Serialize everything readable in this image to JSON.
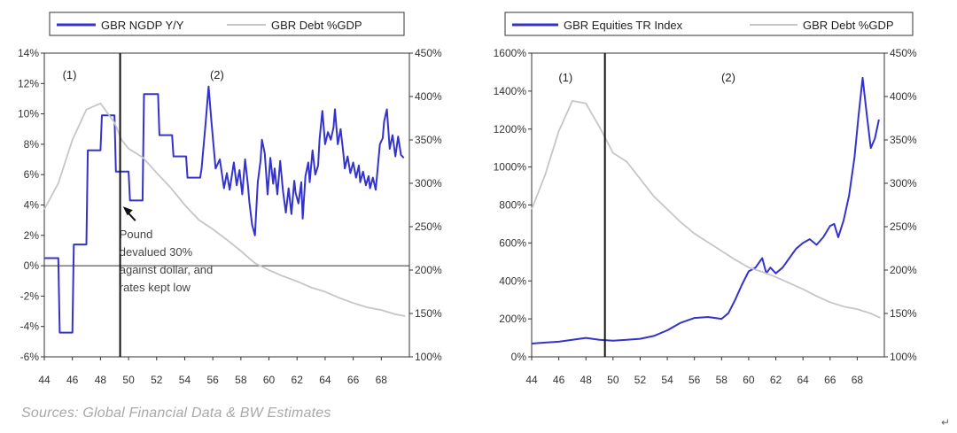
{
  "source": "Sources: Global Financial Data & BW Estimates",
  "return_mark": "↵",
  "chart_data": [
    {
      "type": "line",
      "legend": [
        "GBR NGDP Y/Y",
        "GBR Debt %GDP"
      ],
      "legend_placement": "top",
      "xticks": [
        "44",
        "46",
        "48",
        "50",
        "52",
        "54",
        "56",
        "58",
        "60",
        "62",
        "64",
        "66",
        "68"
      ],
      "xlim": [
        1944,
        1970
      ],
      "ylim_left": [
        -6,
        14
      ],
      "yticks_left": [
        "14%",
        "12%",
        "10%",
        "8%",
        "6%",
        "4%",
        "2%",
        "0%",
        "-2%",
        "-4%",
        "-6%"
      ],
      "ylim_right": [
        100,
        450
      ],
      "yticks_right": [
        "450%",
        "400%",
        "350%",
        "300%",
        "250%",
        "200%",
        "150%",
        "100%"
      ],
      "grid": false,
      "vline_x": 1949.4,
      "period_labels": [
        {
          "text": "(1)",
          "x": 1945.8,
          "y": 12.3
        },
        {
          "text": "(2)",
          "x": 1956.3,
          "y": 12.3
        }
      ],
      "annotation_lines": [
        "Pound",
        "devalued 30%",
        "against dollar, and",
        "rates kept low"
      ],
      "annotation_point": {
        "x": 1949.6,
        "y": 3.9
      },
      "series": [
        {
          "name": "GBR NGDP Y/Y",
          "color": "#3333cc",
          "axis": "left",
          "points": [
            [
              1944,
              0.5
            ],
            [
              1945,
              0.5
            ],
            [
              1945.1,
              -4.4
            ],
            [
              1946,
              -4.4
            ],
            [
              1946.1,
              1.4
            ],
            [
              1947,
              1.4
            ],
            [
              1947.1,
              7.6
            ],
            [
              1948,
              7.6
            ],
            [
              1948.1,
              9.9
            ],
            [
              1949,
              9.9
            ],
            [
              1949.1,
              6.2
            ],
            [
              1950,
              6.2
            ],
            [
              1950.1,
              4.3
            ],
            [
              1951,
              4.3
            ],
            [
              1951.1,
              11.3
            ],
            [
              1952.1,
              11.3
            ],
            [
              1952.2,
              8.6
            ],
            [
              1953.1,
              8.6
            ],
            [
              1953.2,
              7.2
            ],
            [
              1954.1,
              7.2
            ],
            [
              1954.2,
              5.8
            ],
            [
              1955.1,
              5.8
            ],
            [
              1955.2,
              6.4
            ],
            [
              1955.5,
              9.5
            ],
            [
              1955.7,
              11.8
            ],
            [
              1955.9,
              9.5
            ],
            [
              1956.2,
              6.4
            ],
            [
              1956.5,
              7.0
            ],
            [
              1956.8,
              5.1
            ],
            [
              1957.0,
              6.1
            ],
            [
              1957.2,
              5.0
            ],
            [
              1957.5,
              6.8
            ],
            [
              1957.7,
              5.3
            ],
            [
              1957.9,
              6.3
            ],
            [
              1958.1,
              4.7
            ],
            [
              1958.3,
              7.0
            ],
            [
              1958.5,
              5.3
            ],
            [
              1958.6,
              4.2
            ],
            [
              1958.8,
              2.7
            ],
            [
              1959.0,
              2.0
            ],
            [
              1959.2,
              5.5
            ],
            [
              1959.4,
              6.9
            ],
            [
              1959.5,
              8.3
            ],
            [
              1959.7,
              7.4
            ],
            [
              1959.9,
              4.7
            ],
            [
              1960.1,
              7.1
            ],
            [
              1960.3,
              5.4
            ],
            [
              1960.4,
              6.4
            ],
            [
              1960.6,
              4.7
            ],
            [
              1960.8,
              6.9
            ],
            [
              1961.0,
              4.9
            ],
            [
              1961.2,
              3.5
            ],
            [
              1961.4,
              5.1
            ],
            [
              1961.6,
              3.4
            ],
            [
              1961.8,
              5.6
            ],
            [
              1961.9,
              4.8
            ],
            [
              1962.1,
              4.1
            ],
            [
              1962.3,
              5.5
            ],
            [
              1962.4,
              3.1
            ],
            [
              1962.6,
              5.9
            ],
            [
              1962.8,
              6.8
            ],
            [
              1962.9,
              5.5
            ],
            [
              1963.1,
              7.6
            ],
            [
              1963.3,
              6.0
            ],
            [
              1963.5,
              6.6
            ],
            [
              1963.6,
              8.3
            ],
            [
              1963.8,
              10.2
            ],
            [
              1964.0,
              8.0
            ],
            [
              1964.2,
              8.8
            ],
            [
              1964.4,
              8.3
            ],
            [
              1964.6,
              9.1
            ],
            [
              1964.7,
              10.3
            ],
            [
              1964.9,
              8.0
            ],
            [
              1965.1,
              9.0
            ],
            [
              1965.3,
              7.4
            ],
            [
              1965.4,
              6.4
            ],
            [
              1965.6,
              7.2
            ],
            [
              1965.8,
              6.1
            ],
            [
              1966.0,
              6.8
            ],
            [
              1966.2,
              5.8
            ],
            [
              1966.4,
              6.6
            ],
            [
              1966.5,
              5.5
            ],
            [
              1966.7,
              6.2
            ],
            [
              1966.9,
              5.3
            ],
            [
              1967.1,
              5.9
            ],
            [
              1967.2,
              5.1
            ],
            [
              1967.4,
              5.8
            ],
            [
              1967.6,
              5.0
            ],
            [
              1967.7,
              6.0
            ],
            [
              1967.9,
              8.0
            ],
            [
              1968.1,
              8.4
            ],
            [
              1968.2,
              9.5
            ],
            [
              1968.4,
              10.3
            ],
            [
              1968.6,
              7.7
            ],
            [
              1968.8,
              8.6
            ],
            [
              1969.0,
              7.2
            ],
            [
              1969.2,
              8.5
            ],
            [
              1969.4,
              7.3
            ],
            [
              1969.6,
              7.1
            ]
          ]
        },
        {
          "name": "GBR Debt %GDP",
          "color": "#c6c6c6",
          "axis": "right",
          "points": [
            [
              1944,
              270
            ],
            [
              1945,
              300
            ],
            [
              1946,
              350
            ],
            [
              1947,
              385
            ],
            [
              1948,
              392
            ],
            [
              1949,
              370
            ],
            [
              1949.5,
              350
            ],
            [
              1950,
              340
            ],
            [
              1951,
              330
            ],
            [
              1952,
              312
            ],
            [
              1953,
              295
            ],
            [
              1954,
              275
            ],
            [
              1955,
              258
            ],
            [
              1956,
              247
            ],
            [
              1957,
              235
            ],
            [
              1958,
              222
            ],
            [
              1959,
              208
            ],
            [
              1960,
              200
            ],
            [
              1961,
              193
            ],
            [
              1962,
              187
            ],
            [
              1963,
              180
            ],
            [
              1964,
              175
            ],
            [
              1965,
              168
            ],
            [
              1966,
              162
            ],
            [
              1967,
              157
            ],
            [
              1968,
              154
            ],
            [
              1969,
              149
            ],
            [
              1969.7,
              147
            ]
          ]
        }
      ]
    },
    {
      "type": "line",
      "legend": [
        "GBR Equities TR Index",
        "GBR Debt %GDP"
      ],
      "legend_placement": "top",
      "xticks": [
        "44",
        "46",
        "48",
        "50",
        "52",
        "54",
        "56",
        "58",
        "60",
        "62",
        "64",
        "66",
        "68"
      ],
      "xlim": [
        1944,
        1970
      ],
      "ylim_left": [
        0,
        1600
      ],
      "yticks_left": [
        "1600%",
        "1400%",
        "1200%",
        "1000%",
        "800%",
        "600%",
        "400%",
        "200%",
        "0%"
      ],
      "ylim_right": [
        100,
        450
      ],
      "yticks_right": [
        "450%",
        "400%",
        "350%",
        "300%",
        "250%",
        "200%",
        "150%",
        "100%"
      ],
      "grid": false,
      "vline_x": 1949.4,
      "period_labels": [
        {
          "text": "(1)",
          "x": 1946.5,
          "y": 1450
        },
        {
          "text": "(2)",
          "x": 1958.5,
          "y": 1450
        }
      ],
      "series": [
        {
          "name": "GBR Equities TR Index",
          "color": "#3333cc",
          "axis": "left",
          "points": [
            [
              1944,
              70
            ],
            [
              1945,
              75
            ],
            [
              1946,
              80
            ],
            [
              1947,
              90
            ],
            [
              1948,
              100
            ],
            [
              1949,
              90
            ],
            [
              1950,
              85
            ],
            [
              1951,
              90
            ],
            [
              1952,
              95
            ],
            [
              1953,
              110
            ],
            [
              1954,
              140
            ],
            [
              1955,
              180
            ],
            [
              1956,
              205
            ],
            [
              1957,
              210
            ],
            [
              1958,
              200
            ],
            [
              1958.5,
              230
            ],
            [
              1959,
              300
            ],
            [
              1959.5,
              380
            ],
            [
              1960,
              450
            ],
            [
              1960.5,
              470
            ],
            [
              1961,
              520
            ],
            [
              1961.3,
              440
            ],
            [
              1961.6,
              470
            ],
            [
              1962,
              440
            ],
            [
              1962.5,
              470
            ],
            [
              1963,
              520
            ],
            [
              1963.5,
              570
            ],
            [
              1964,
              600
            ],
            [
              1964.5,
              620
            ],
            [
              1965,
              590
            ],
            [
              1965.5,
              630
            ],
            [
              1966,
              690
            ],
            [
              1966.3,
              700
            ],
            [
              1966.6,
              630
            ],
            [
              1967,
              720
            ],
            [
              1967.4,
              850
            ],
            [
              1967.8,
              1050
            ],
            [
              1968.1,
              1270
            ],
            [
              1968.4,
              1470
            ],
            [
              1968.7,
              1280
            ],
            [
              1969,
              1100
            ],
            [
              1969.3,
              1150
            ],
            [
              1969.6,
              1250
            ]
          ]
        },
        {
          "name": "GBR Debt %GDP",
          "color": "#c6c6c6",
          "axis": "right",
          "points": [
            [
              1944,
              270
            ],
            [
              1945,
              310
            ],
            [
              1946,
              360
            ],
            [
              1947,
              395
            ],
            [
              1948,
              392
            ],
            [
              1949,
              365
            ],
            [
              1949.5,
              350
            ],
            [
              1950,
              335
            ],
            [
              1951,
              325
            ],
            [
              1952,
              305
            ],
            [
              1953,
              285
            ],
            [
              1954,
              270
            ],
            [
              1955,
              255
            ],
            [
              1956,
              242
            ],
            [
              1957,
              232
            ],
            [
              1958,
              222
            ],
            [
              1959,
              212
            ],
            [
              1960,
              203
            ],
            [
              1961,
              198
            ],
            [
              1962,
              192
            ],
            [
              1963,
              185
            ],
            [
              1964,
              178
            ],
            [
              1965,
              170
            ],
            [
              1966,
              163
            ],
            [
              1967,
              158
            ],
            [
              1968,
              155
            ],
            [
              1969,
              150
            ],
            [
              1969.7,
              145
            ]
          ]
        }
      ]
    }
  ]
}
